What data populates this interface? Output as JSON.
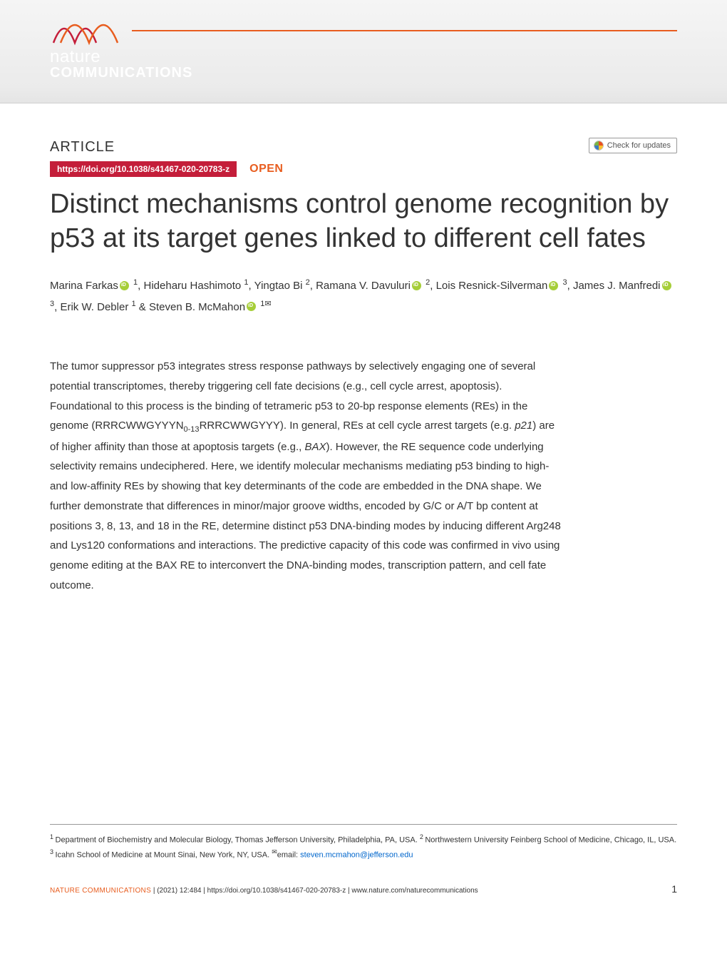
{
  "banner": {
    "journal_line1": "nature",
    "journal_line2": "COMMUNICATIONS",
    "wave_color_orange": "#e85d1f",
    "wave_color_red": "#c41e3a",
    "background_gradient": [
      "#f5f5f5",
      "#e5e5e5"
    ]
  },
  "header": {
    "article_label": "ARTICLE",
    "doi": "https://doi.org/10.1038/s41467-020-20783-z",
    "doi_badge_bg": "#c41e3a",
    "open_label": "OPEN",
    "open_color": "#e85d1f",
    "check_updates_label": "Check for updates"
  },
  "title": "Distinct mechanisms control genome recognition by p53 at its target genes linked to different cell fates",
  "authors": [
    {
      "name": "Marina Farkas",
      "orcid": true,
      "affil": "1"
    },
    {
      "name": "Hideharu Hashimoto",
      "orcid": false,
      "affil": "1"
    },
    {
      "name": "Yingtao Bi",
      "orcid": false,
      "affil": "2"
    },
    {
      "name": "Ramana V. Davuluri",
      "orcid": true,
      "affil": "2"
    },
    {
      "name": "Lois Resnick-Silverman",
      "orcid": true,
      "affil": "3"
    },
    {
      "name": "James J. Manfredi",
      "orcid": true,
      "affil": "3"
    },
    {
      "name": "Erik W. Debler",
      "orcid": false,
      "affil": "1"
    },
    {
      "name": "Steven B. McMahon",
      "orcid": true,
      "affil": "1",
      "corresponding": true
    }
  ],
  "abstract": {
    "text_parts": [
      "The tumor suppressor p53 integrates stress response pathways by selectively engaging one of several potential transcriptomes, thereby triggering cell fate decisions (e.g., cell cycle arrest, apoptosis). Foundational to this process is the binding of tetrameric p53 to 20-bp response elements (REs) in the genome (RRRCWWGYYYN",
      "RRRCWWGYYY). In general, REs at cell cycle arrest targets (e.g. ",
      ") are of higher affinity than those at apoptosis targets (e.g., ",
      "). However, the RE sequence code underlying selectivity remains undeciphered. Here, we identify molecular mechanisms mediating p53 binding to high- and low-affinity REs by showing that key determinants of the code are embedded in the DNA shape. We further demonstrate that differences in minor/major groove widths, encoded by G/C or A/T bp content at positions 3, 8, 13, and 18 in the RE, determine distinct p53 DNA-binding modes by inducing different Arg248 and Lys120 conformations and interactions. The predictive capacity of this code was confirmed in vivo using genome editing at the BAX RE to interconvert the DNA-binding modes, transcription pattern, and cell fate outcome."
    ],
    "subscript": "0-13",
    "italic1": "p21",
    "italic2": "BAX"
  },
  "affiliations": {
    "text": "Department of Biochemistry and Molecular Biology, Thomas Jefferson University, Philadelphia, PA, USA. ",
    "text2": "Northwestern University Feinberg School of Medicine, Chicago, IL, USA. ",
    "text3": "Icahn School of Medicine at Mount Sinai, New York, NY, USA. ",
    "email_label": "email: ",
    "email": "steven.mcmahon@jefferson.edu"
  },
  "footer": {
    "journal": "NATURE COMMUNICATIONS",
    "citation": "(2021) 12:484  | https://doi.org/10.1038/s41467-020-20783-z | www.nature.com/naturecommunications",
    "page": "1"
  },
  "colors": {
    "orcid_green": "#a6ce39",
    "link_blue": "#0066cc",
    "text": "#333333"
  }
}
